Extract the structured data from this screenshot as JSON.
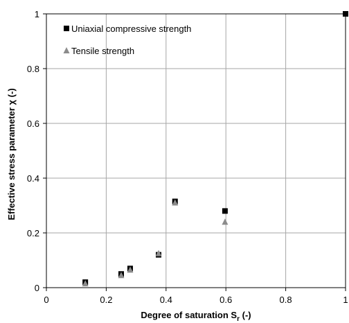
{
  "chart_data": {
    "type": "scatter",
    "title": "",
    "xlabel": {
      "main": "Degree of saturation S",
      "sub": "r",
      "unit": " (-)"
    },
    "ylabel": "Effective stress parameter  χ  (-)",
    "xlim": [
      0,
      1
    ],
    "ylim": [
      0,
      1
    ],
    "xticks": [
      0,
      0.2,
      0.4,
      0.6,
      0.8,
      1
    ],
    "yticks": [
      0,
      0.2,
      0.4,
      0.6,
      0.8,
      1
    ],
    "x_tick_labels": [
      "0",
      "0.2",
      "0.4",
      "0.6",
      "0.8",
      "1"
    ],
    "y_tick_labels": [
      "0",
      "0.2",
      "0.4",
      "0.6",
      "0.8",
      "1"
    ],
    "grid": true,
    "legend_position": "top-left",
    "series": [
      {
        "name": "Uniaxial compressive strength",
        "marker": "square",
        "color": "#000000",
        "points": [
          {
            "x": 0.13,
            "y": 0.02
          },
          {
            "x": 0.25,
            "y": 0.05
          },
          {
            "x": 0.28,
            "y": 0.07
          },
          {
            "x": 0.375,
            "y": 0.12
          },
          {
            "x": 0.43,
            "y": 0.315
          },
          {
            "x": 0.597,
            "y": 0.28
          },
          {
            "x": 1.0,
            "y": 1.0
          }
        ]
      },
      {
        "name": "Tensile strength",
        "marker": "triangle",
        "color": "#8c8c8c",
        "points": [
          {
            "x": 0.13,
            "y": 0.015
          },
          {
            "x": 0.25,
            "y": 0.045
          },
          {
            "x": 0.28,
            "y": 0.065
          },
          {
            "x": 0.375,
            "y": 0.125
          },
          {
            "x": 0.43,
            "y": 0.31
          },
          {
            "x": 0.597,
            "y": 0.24
          }
        ]
      }
    ]
  }
}
